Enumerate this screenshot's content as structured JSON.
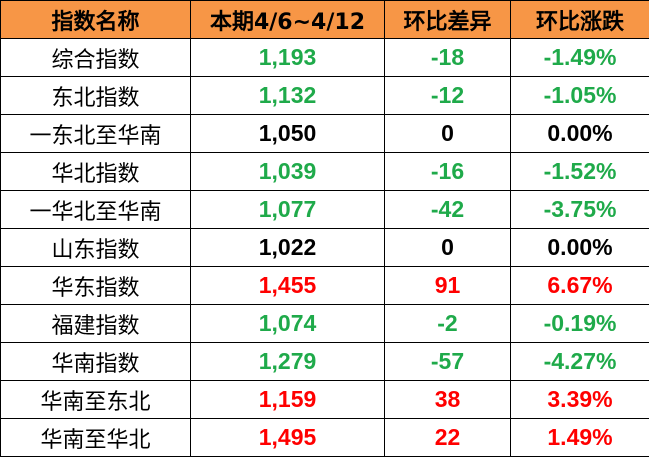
{
  "table": {
    "header_color": "#f79646",
    "header": [
      "指数名称",
      "本期4/6~4/12",
      "环比差异",
      "环比涨跌"
    ],
    "rows": [
      {
        "name": "综合指数",
        "values": [
          "1,193",
          "-18",
          "-1.49%"
        ],
        "color": "#1faa4a"
      },
      {
        "name": "东北指数",
        "values": [
          "1,132",
          "-12",
          "-1.05%"
        ],
        "color": "#1faa4a"
      },
      {
        "name": "一东北至华南",
        "values": [
          "1,050",
          "0",
          "0.00%"
        ],
        "color": "#000000"
      },
      {
        "name": "华北指数",
        "values": [
          "1,039",
          "-16",
          "-1.52%"
        ],
        "color": "#1faa4a"
      },
      {
        "name": "一华北至华南",
        "values": [
          "1,077",
          "-42",
          "-3.75%"
        ],
        "color": "#1faa4a"
      },
      {
        "name": "山东指数",
        "values": [
          "1,022",
          "0",
          "0.00%"
        ],
        "color": "#000000"
      },
      {
        "name": "华东指数",
        "values": [
          "1,455",
          "91",
          "6.67%"
        ],
        "color": "#ff0000"
      },
      {
        "name": "福建指数",
        "values": [
          "1,074",
          "-2",
          "-0.19%"
        ],
        "color": "#1faa4a"
      },
      {
        "name": "华南指数",
        "values": [
          "1,279",
          "-57",
          "-4.27%"
        ],
        "color": "#1faa4a"
      },
      {
        "name": "华南至东北",
        "values": [
          "1,159",
          "38",
          "3.39%"
        ],
        "color": "#ff0000"
      },
      {
        "name": "华南至华北",
        "values": [
          "1,495",
          "22",
          "1.49%"
        ],
        "color": "#ff0000"
      }
    ]
  }
}
